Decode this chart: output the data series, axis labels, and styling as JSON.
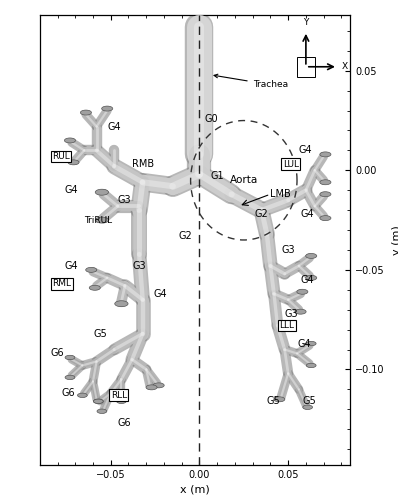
{
  "xlabel": "x (m)",
  "ylabel": "y (m)",
  "xlim": [
    -0.09,
    0.085
  ],
  "ylim": [
    -0.148,
    0.078
  ],
  "xticks": [
    -0.05,
    0,
    0.05
  ],
  "yticks": [
    0.05,
    0,
    -0.05,
    -0.1
  ],
  "bg_color": "#ffffff",
  "fig_width": 3.98,
  "fig_height": 5.0,
  "dpi": 100
}
